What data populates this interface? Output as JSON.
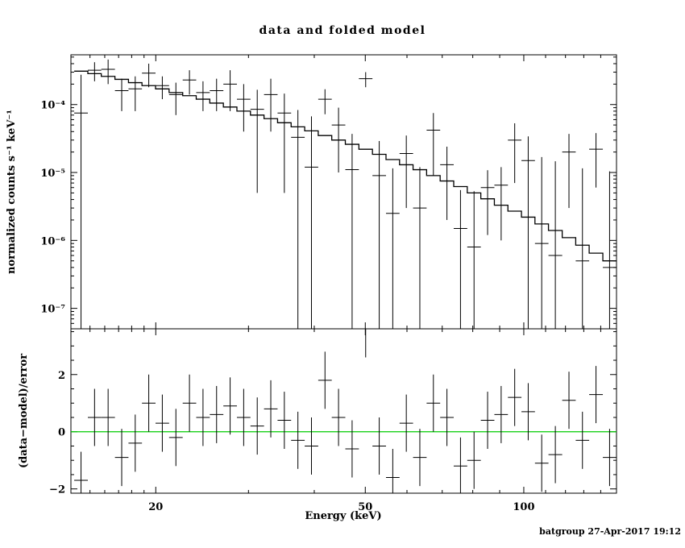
{
  "chart_data": {
    "type": "scatter",
    "title": "data and folded model",
    "xlabel": "Energy (keV)",
    "footer": "batgroup 27-Apr-2017 19:12",
    "x_scale": "log",
    "x_range": [
      13.8,
      150
    ],
    "x_major_ticks": [
      20,
      50,
      100
    ],
    "x_major_tick_labels": [
      "20",
      "50",
      "100"
    ],
    "x_minor_ticks": [
      15,
      16,
      17,
      18,
      19,
      30,
      40,
      60,
      70,
      80,
      90,
      110,
      120,
      130,
      140
    ],
    "top_panel": {
      "ylabel": "normalized counts s⁻¹ keV⁻¹",
      "y_scale": "log",
      "y_range": [
        5e-08,
        0.00054
      ],
      "y_major_ticks": [
        0.0001,
        1e-05,
        1e-06,
        1e-07
      ],
      "y_tick_labels": [
        "10⁻⁴",
        "10⁻⁵",
        "10⁻⁶",
        "10⁻⁷"
      ]
    },
    "bottom_panel": {
      "ylabel": "(data−model)/error",
      "y_scale": "linear",
      "y_range": [
        -2.15,
        3.6
      ],
      "y_major_ticks": [
        -2,
        0,
        2
      ],
      "y_tick_labels": [
        "−2",
        "0",
        "2"
      ],
      "y_minor_step": 0.5,
      "resid_err": 1,
      "zero_line_color": "#00cc00"
    },
    "bins_columns": [
      "e_lo",
      "e_hi",
      "model",
      "data",
      "data_err",
      "resid"
    ],
    "bins": [
      [
        14.0,
        14.86,
        0.00031,
        7.5e-05,
        0.0002,
        -1.7
      ],
      [
        14.86,
        15.76,
        0.000285,
        0.00032,
        0.0001,
        0.5
      ],
      [
        15.76,
        16.73,
        0.00026,
        0.00033,
        0.00013,
        0.5
      ],
      [
        16.73,
        17.75,
        0.000235,
        0.00016,
        8e-05,
        -0.9
      ],
      [
        17.75,
        18.83,
        0.00021,
        0.00017,
        9e-05,
        -0.4
      ],
      [
        18.83,
        19.98,
        0.00019,
        0.00029,
        0.00011,
        1.0
      ],
      [
        19.98,
        21.2,
        0.00017,
        0.00019,
        7e-05,
        0.3
      ],
      [
        21.2,
        22.5,
        0.00015,
        0.00014,
        7e-05,
        -0.2
      ],
      [
        22.5,
        23.87,
        0.000135,
        0.00023,
        9e-05,
        1.0
      ],
      [
        23.87,
        25.33,
        0.00012,
        0.00015,
        7e-05,
        0.5
      ],
      [
        25.33,
        26.88,
        0.000105,
        0.00016,
        8e-05,
        0.6
      ],
      [
        26.88,
        28.52,
        9.2e-05,
        0.0002,
        0.00012,
        0.9
      ],
      [
        28.52,
        30.26,
        8e-05,
        0.00012,
        8e-05,
        0.5
      ],
      [
        30.26,
        32.11,
        7e-05,
        8.5e-05,
        8e-05,
        0.2
      ],
      [
        32.11,
        34.07,
        6.2e-05,
        0.00014,
        0.0001,
        0.8
      ],
      [
        34.07,
        36.15,
        5.4e-05,
        7.5e-05,
        7e-05,
        0.4
      ],
      [
        36.15,
        38.36,
        4.7e-05,
        3.3e-05,
        5e-05,
        -0.3
      ],
      [
        38.36,
        40.7,
        4.1e-05,
        1.2e-05,
        5.5e-05,
        -0.5
      ],
      [
        40.7,
        43.18,
        3.5e-05,
        0.00012,
        4.8e-05,
        1.8
      ],
      [
        43.18,
        45.82,
        3e-05,
        5e-05,
        4e-05,
        0.5
      ],
      [
        45.82,
        48.62,
        2.6e-05,
        1.1e-05,
        2.6e-05,
        -0.6
      ],
      [
        48.62,
        51.59,
        2.2e-05,
        0.00024,
        6e-05,
        3.6
      ],
      [
        51.59,
        54.74,
        1.85e-05,
        9e-06,
        2e-05,
        -0.5
      ],
      [
        54.74,
        58.08,
        1.55e-05,
        2.5e-06,
        9e-06,
        -1.6
      ],
      [
        58.08,
        61.62,
        1.3e-05,
        1.9e-05,
        1.6e-05,
        0.3
      ],
      [
        61.62,
        65.38,
        1.1e-05,
        3e-06,
        9e-06,
        -0.9
      ],
      [
        65.38,
        69.37,
        9e-06,
        4.2e-05,
        3.3e-05,
        1.0
      ],
      [
        69.37,
        73.61,
        7.5e-06,
        1.3e-05,
        1.1e-05,
        0.5
      ],
      [
        73.61,
        78.1,
        6.2e-06,
        1.5e-06,
        4e-06,
        -1.2
      ],
      [
        78.1,
        82.87,
        5e-06,
        8e-07,
        4.5e-06,
        -1.0
      ],
      [
        82.87,
        87.93,
        4.1e-06,
        6e-06,
        4.8e-06,
        0.4
      ],
      [
        87.93,
        93.3,
        3.3e-06,
        6.5e-06,
        5.5e-06,
        0.6
      ],
      [
        93.3,
        98.99,
        2.7e-06,
        3e-05,
        2.3e-05,
        1.2
      ],
      [
        98.99,
        105.0,
        2.2e-06,
        1.5e-05,
        1.9e-05,
        0.7
      ],
      [
        105.0,
        111.4,
        1.75e-06,
        9e-07,
        1.6e-05,
        -1.1
      ],
      [
        111.4,
        118.3,
        1.4e-06,
        6e-07,
        1.4e-05,
        -0.8
      ],
      [
        118.3,
        125.5,
        1.1e-06,
        2e-05,
        1.7e-05,
        1.1
      ],
      [
        125.5,
        133.1,
        8.5e-07,
        5e-07,
        1.1e-05,
        -0.3
      ],
      [
        133.1,
        141.3,
        6.5e-07,
        2.2e-05,
        1.6e-05,
        1.3
      ],
      [
        141.3,
        149.9,
        5e-07,
        4e-07,
        1e-05,
        -0.9
      ]
    ]
  }
}
